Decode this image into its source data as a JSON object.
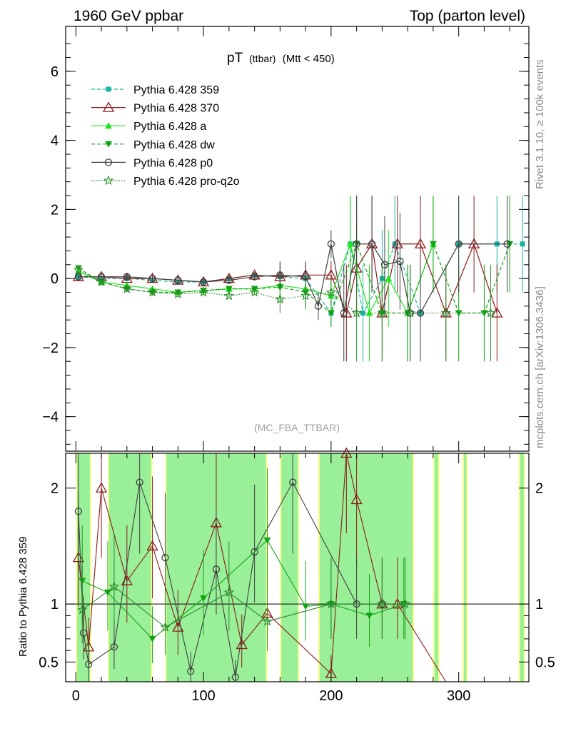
{
  "header": {
    "left": "1960 GeV ppbar",
    "right": "Top (parton level)"
  },
  "side_labels": {
    "rivet": "Rivet 3.1.10, ≥ 100k events",
    "mcplots": "mcplots.cern.ch [arXiv:1306.3436]"
  },
  "watermark": "(MC_FBA_TTBAR)",
  "colors": {
    "p359": "#17b3a3",
    "p370": "#8b1a1a",
    "a": "#1ee61e",
    "dw": "#12a312",
    "p0": "#404040",
    "proq2o": "#2a8a2a",
    "band_yellow": "#ffff88",
    "band_green": "#99f099"
  },
  "chart_data": [
    {
      "type": "line",
      "title_main": "pT",
      "title_sub": "(ttbar)",
      "title_cond": "(Mtt < 450)",
      "xlim": [
        -8,
        355
      ],
      "ylim": [
        -5,
        7.3
      ],
      "yticks": [
        -4,
        -2,
        0,
        2,
        4,
        6
      ],
      "yticklabels": [
        "−4",
        "−2",
        "0",
        "2",
        "4",
        "6"
      ],
      "legend_position": "top-left",
      "series": [
        {
          "name": "Pythia 6.428 359",
          "key": "p359",
          "marker": "square",
          "dash": "5,3",
          "x": [
            2,
            20,
            40,
            60,
            80,
            100,
            120,
            140,
            160,
            180,
            200,
            215,
            225,
            240,
            250,
            270,
            300,
            330,
            350
          ],
          "y": [
            0.05,
            0.0,
            0.0,
            -0.05,
            -0.1,
            -0.1,
            0.0,
            0.1,
            0.05,
            0.0,
            -1.0,
            1.0,
            -1.0,
            0.0,
            1.0,
            -1.0,
            1.0,
            1.0,
            1.0
          ]
        },
        {
          "name": "Pythia 6.428 370",
          "key": "p370",
          "marker": "triangle-open",
          "dash": "",
          "x": [
            2,
            20,
            40,
            60,
            80,
            100,
            120,
            140,
            160,
            180,
            200,
            212,
            220,
            232,
            240,
            252,
            270,
            290,
            312,
            330
          ],
          "y": [
            0.05,
            0.05,
            0.0,
            0.0,
            -0.05,
            -0.1,
            0.0,
            0.1,
            0.05,
            0.1,
            0.1,
            -1.0,
            0.3,
            1.0,
            -1.0,
            1.0,
            1.0,
            -1.0,
            1.0,
            -1.0
          ]
        },
        {
          "name": "Pythia 6.428 a",
          "key": "a",
          "marker": "triangle",
          "dash": "",
          "x": [
            2,
            20,
            40,
            60,
            80,
            100,
            120,
            140,
            160,
            180,
            200,
            215,
            230,
            245,
            260,
            280
          ],
          "y": [
            0.2,
            -0.1,
            -0.2,
            -0.3,
            -0.4,
            -0.35,
            -0.3,
            -0.3,
            -0.2,
            -0.3,
            -0.5,
            1.0,
            -1.0,
            0.0,
            -1.0,
            1.0
          ]
        },
        {
          "name": "Pythia 6.428 dw",
          "key": "dw",
          "marker": "triangle-down",
          "dash": "5,3",
          "x": [
            2,
            20,
            40,
            60,
            80,
            100,
            120,
            140,
            160,
            180,
            200,
            220,
            240,
            260,
            280,
            300,
            320,
            340
          ],
          "y": [
            0.3,
            -0.1,
            -0.3,
            -0.4,
            -0.4,
            -0.35,
            -0.3,
            -0.3,
            -0.25,
            -0.4,
            -1.0,
            1.0,
            -1.0,
            -1.0,
            1.0,
            -1.0,
            -1.0,
            1.0
          ]
        },
        {
          "name": "Pythia 6.428 p0",
          "key": "p0",
          "marker": "circle-open",
          "dash": "",
          "x": [
            2,
            20,
            40,
            60,
            80,
            100,
            120,
            140,
            160,
            180,
            190,
            200,
            210,
            220,
            232,
            242,
            254,
            262,
            270,
            300,
            338
          ],
          "y": [
            0.05,
            0.05,
            0.05,
            0.0,
            -0.05,
            -0.1,
            -0.05,
            0.05,
            0.1,
            0.05,
            -0.8,
            1.0,
            -1.0,
            1.0,
            1.0,
            0.4,
            0.5,
            -1.0,
            -1.0,
            1.0,
            1.0
          ]
        },
        {
          "name": "Pythia 6.428 pro-q2o",
          "key": "proq2o",
          "marker": "star-open",
          "dash": "1.5,2",
          "x": [
            2,
            20,
            40,
            60,
            80,
            100,
            120,
            140,
            160,
            180,
            200,
            220,
            240,
            262,
            290,
            325
          ],
          "y": [
            0.25,
            -0.1,
            -0.3,
            -0.4,
            -0.45,
            -0.4,
            -0.5,
            -0.4,
            -0.6,
            -0.5,
            -0.4,
            -1.0,
            -1.0,
            -1.0,
            -1.0,
            -1.0
          ]
        }
      ]
    },
    {
      "type": "line",
      "ylabel": "Ratio to Pythia 6.428 359",
      "xlim": [
        -8,
        355
      ],
      "ylim": [
        0.33,
        2.3
      ],
      "yticks": [
        0.5,
        1,
        2
      ],
      "yticklabels": [
        "0.5",
        "1",
        "2"
      ],
      "xticks": [
        0,
        100,
        200,
        300
      ],
      "xticklabels": [
        "0",
        "100",
        "200",
        "300"
      ],
      "reference_line": 1.0,
      "series": [
        {
          "key": "p370",
          "x": [
            2,
            10,
            20,
            40,
            60,
            80,
            110,
            130,
            150,
            200,
            212,
            220,
            240,
            252,
            290
          ],
          "y": [
            1.4,
            0.63,
            2.0,
            1.2,
            1.5,
            0.8,
            1.7,
            0.65,
            0.92,
            0.4,
            2.3,
            1.9,
            1.0,
            1.0,
            0.3
          ]
        },
        {
          "key": "p0",
          "x": [
            2,
            6,
            10,
            30,
            50,
            70,
            90,
            110,
            125,
            140,
            170,
            220,
            240
          ],
          "y": [
            1.8,
            0.75,
            0.48,
            0.63,
            2.05,
            1.4,
            0.42,
            1.3,
            0.37,
            1.45,
            2.05,
            1.0,
            1.0
          ]
        },
        {
          "key": "dw",
          "x": [
            5,
            25,
            60,
            100,
            150,
            180,
            200,
            230,
            257
          ],
          "y": [
            1.2,
            1.1,
            0.7,
            1.05,
            1.55,
            0.98,
            1.0,
            0.9,
            1.0
          ]
        },
        {
          "key": "proq2o",
          "x": [
            5,
            30,
            70,
            120,
            150,
            200,
            240,
            258
          ],
          "y": [
            0.95,
            1.15,
            0.8,
            1.1,
            0.85,
            1.0,
            1.0,
            1.0
          ]
        }
      ]
    }
  ]
}
